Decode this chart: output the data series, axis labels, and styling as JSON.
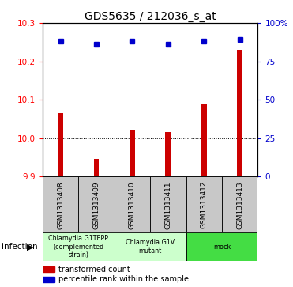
{
  "title": "GDS5635 / 212036_s_at",
  "samples": [
    "GSM1313408",
    "GSM1313409",
    "GSM1313410",
    "GSM1313411",
    "GSM1313412",
    "GSM1313413"
  ],
  "bar_values": [
    10.065,
    9.945,
    10.02,
    10.015,
    10.09,
    10.23
  ],
  "percentile_values": [
    88,
    86,
    88,
    86,
    88,
    89
  ],
  "ylim_left": [
    9.9,
    10.3
  ],
  "ylim_right": [
    0,
    100
  ],
  "yticks_left": [
    9.9,
    10.0,
    10.1,
    10.2,
    10.3
  ],
  "yticks_right": [
    0,
    25,
    50,
    75,
    100
  ],
  "bar_color": "#cc0000",
  "dot_color": "#0000cc",
  "group_ranges": [
    [
      0,
      1
    ],
    [
      2,
      3
    ],
    [
      4,
      5
    ]
  ],
  "group_labels": [
    "Chlamydia G1TEPP\n(complemented\nstrain)",
    "Chlamydia G1V\nmutant",
    "mock"
  ],
  "group_colors": [
    "#ccffcc",
    "#ccffcc",
    "#44dd44"
  ],
  "infection_label": "infection",
  "legend_red_label": "transformed count",
  "legend_blue_label": "percentile rank within the sample",
  "bar_width": 0.15,
  "sample_box_color": "#c8c8c8"
}
